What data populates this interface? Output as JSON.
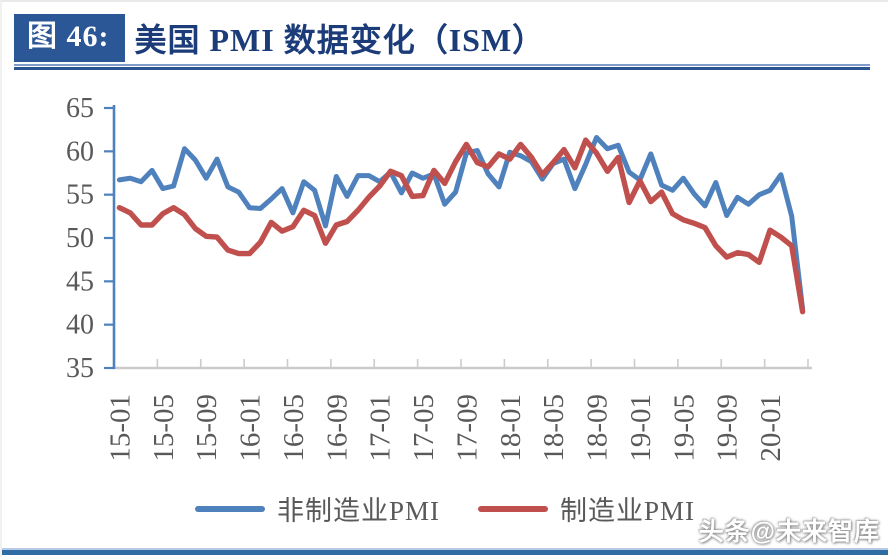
{
  "figure": {
    "badge": "图 46:",
    "title": "美国 PMI 数据变化（ISM）"
  },
  "watermark": "头条@未来智库",
  "chart_data": {
    "type": "line",
    "title": "美国 PMI 数据变化（ISM）",
    "x_start": "2015-01",
    "x_end": "2020-04",
    "x_frequency": "monthly",
    "x_tick_labels": [
      "15-01",
      "15-05",
      "15-09",
      "16-01",
      "16-05",
      "16-09",
      "17-01",
      "17-05",
      "17-09",
      "18-01",
      "18-05",
      "18-09",
      "19-01",
      "19-05",
      "19-09",
      "20-01"
    ],
    "ylim": [
      35,
      65
    ],
    "yticks": [
      65,
      60,
      55,
      50,
      45,
      40,
      35
    ],
    "grid": false,
    "legend_position": "bottom",
    "axis_colors": {
      "y_axis": "#4F81BD",
      "x_axis": "#CBCBCB",
      "tick_text": "#595959"
    },
    "series": [
      {
        "name": "非制造业PMI",
        "key": "non-manufacturing-pmi",
        "color": "#4F81BD",
        "values": [
          56.7,
          56.9,
          56.5,
          57.8,
          55.7,
          56.0,
          60.3,
          59.0,
          56.9,
          59.1,
          55.9,
          55.3,
          53.5,
          53.4,
          54.5,
          55.7,
          52.9,
          56.5,
          55.5,
          51.4,
          57.1,
          54.8,
          57.2,
          57.2,
          56.5,
          57.6,
          55.2,
          57.5,
          56.9,
          57.4,
          53.9,
          55.3,
          59.8,
          60.1,
          57.4,
          55.9,
          59.9,
          59.5,
          58.8,
          56.8,
          58.6,
          59.1,
          55.7,
          58.5,
          61.6,
          60.3,
          60.7,
          57.6,
          56.7,
          59.7,
          56.1,
          55.5,
          56.9,
          55.1,
          53.7,
          56.4,
          52.6,
          54.7,
          53.9,
          55.0,
          55.5,
          57.3,
          52.5,
          41.8
        ]
      },
      {
        "name": "制造业PMI",
        "key": "manufacturing-pmi",
        "color": "#C0504D",
        "values": [
          53.5,
          52.9,
          51.5,
          51.5,
          52.8,
          53.5,
          52.7,
          51.1,
          50.2,
          50.1,
          48.6,
          48.2,
          48.2,
          49.5,
          51.8,
          50.8,
          51.3,
          53.2,
          52.6,
          49.4,
          51.5,
          51.9,
          53.2,
          54.7,
          56.0,
          57.7,
          57.2,
          54.8,
          54.9,
          57.8,
          56.3,
          58.8,
          60.8,
          58.7,
          58.2,
          59.7,
          59.1,
          60.8,
          59.3,
          57.3,
          58.7,
          60.2,
          58.1,
          61.3,
          59.8,
          57.7,
          59.3,
          54.1,
          56.6,
          54.2,
          55.3,
          52.8,
          52.1,
          51.7,
          51.2,
          49.1,
          47.8,
          48.3,
          48.1,
          47.2,
          50.9,
          50.1,
          49.1,
          41.5
        ]
      }
    ]
  }
}
